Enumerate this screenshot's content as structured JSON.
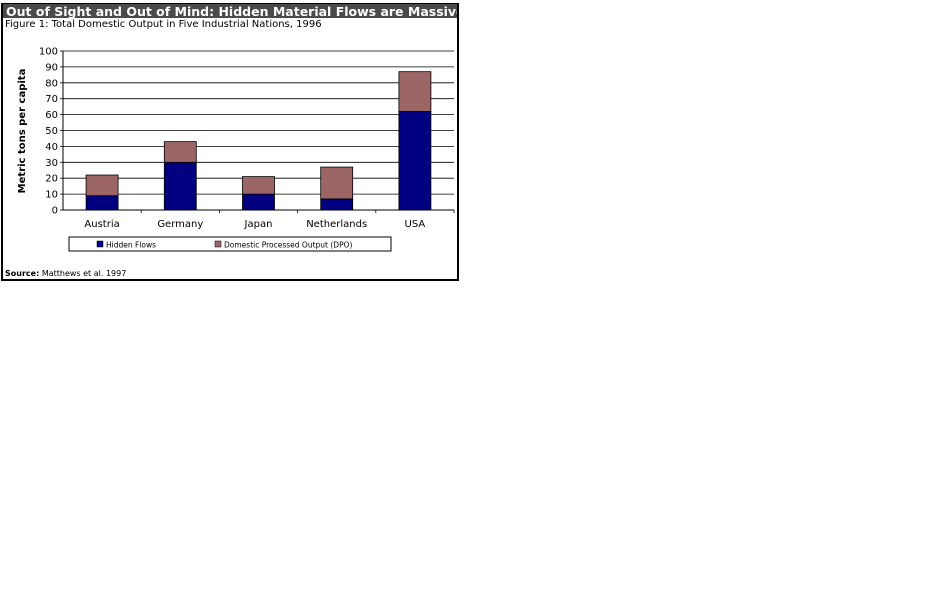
{
  "figure": {
    "banner": "Out of Sight and Out of Mind: Hidden Material Flows are Massive",
    "subtitle": "Figure 1: Total Domestic Output in Five Industrial Nations, 1996",
    "source_label": "Source:",
    "source_text": "Matthews et al. 1997"
  },
  "colors": {
    "hidden_flows": "#000080",
    "dpo": "#9c6666",
    "banner_bg": "#4a4a4a"
  },
  "chart_data": {
    "type": "bar",
    "stacked": true,
    "categories": [
      "Austria",
      "Germany",
      "Japan",
      "Netherlands",
      "USA"
    ],
    "series": [
      {
        "name": "Hidden Flows",
        "values": [
          9,
          30,
          10,
          7,
          62
        ]
      },
      {
        "name": "Domestic Processed Output (DPO)",
        "values": [
          13,
          13,
          11,
          20,
          25
        ]
      }
    ],
    "ylabel": "Metric tons per capita",
    "ylim": [
      0,
      100
    ],
    "yticks": [
      0,
      10,
      20,
      30,
      40,
      50,
      60,
      70,
      80,
      90,
      100
    ],
    "grid": true,
    "legend_position": "bottom"
  }
}
